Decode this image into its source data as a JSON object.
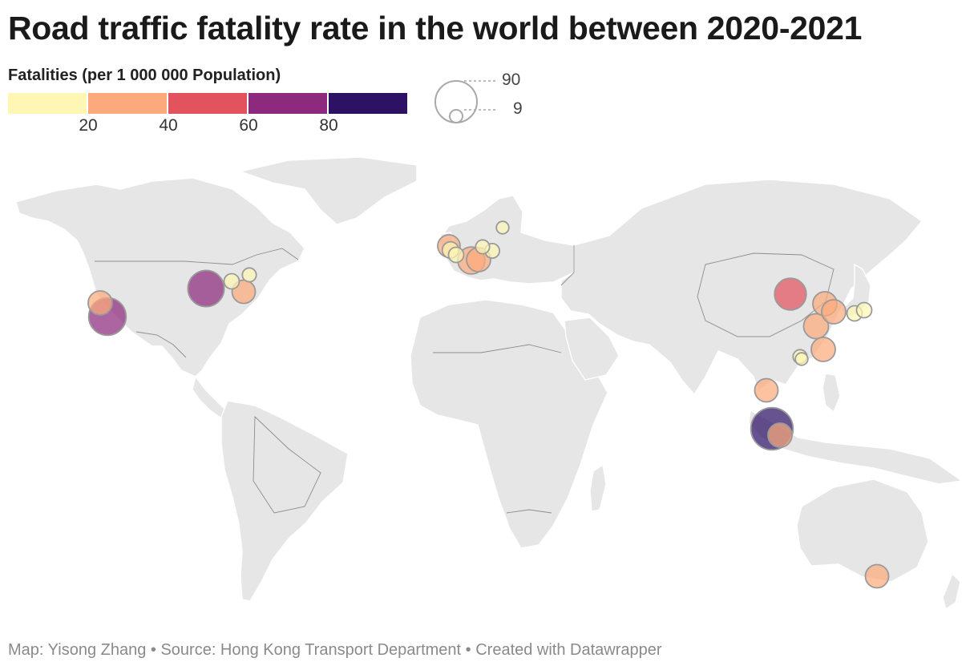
{
  "title": "Road traffic fatality rate in the world between 2020-2021",
  "legend": {
    "title": "Fatalities (per 1 000 000 Population)",
    "bins": [
      {
        "color": "#fdf6b4"
      },
      {
        "color": "#fcaa7c"
      },
      {
        "color": "#e2535e"
      },
      {
        "color": "#8e2a7d"
      },
      {
        "color": "#2d1165"
      }
    ],
    "ticks": [
      "20",
      "40",
      "60",
      "80"
    ],
    "size_labels": [
      "90",
      "9"
    ]
  },
  "map_data": {
    "type": "proportional-symbol-map",
    "scale_max": 90,
    "points": [
      {
        "place": "Seattle area",
        "value": 30
      },
      {
        "place": "Los Angeles area",
        "value": 72
      },
      {
        "place": "Chicago area",
        "value": 68
      },
      {
        "place": "Toronto area",
        "value": 12
      },
      {
        "place": "Boston area",
        "value": 10
      },
      {
        "place": "New York area",
        "value": 28
      },
      {
        "place": "London area",
        "value": 26
      },
      {
        "place": "Birmingham area",
        "value": 14
      },
      {
        "place": "Paris area",
        "value": 12
      },
      {
        "place": "Amsterdam area",
        "value": 10
      },
      {
        "place": "Berlin area",
        "value": 11
      },
      {
        "place": "Stockholm area",
        "value": 8
      },
      {
        "place": "Munich area",
        "value": 38
      },
      {
        "place": "Vienna area",
        "value": 30
      },
      {
        "place": "Beijing area",
        "value": 52
      },
      {
        "place": "Seoul area",
        "value": 30
      },
      {
        "place": "Busan area",
        "value": 30
      },
      {
        "place": "Osaka area",
        "value": 12
      },
      {
        "place": "Tokyo area",
        "value": 12
      },
      {
        "place": "Shanghai area",
        "value": 32
      },
      {
        "place": "Taipei area",
        "value": 30
      },
      {
        "place": "Hong Kong",
        "value": 10
      },
      {
        "place": "Macau",
        "value": 8
      },
      {
        "place": "Bangkok area",
        "value": 28
      },
      {
        "place": "Kuala Lumpur area",
        "value": 92
      },
      {
        "place": "Singapore",
        "value": 30
      },
      {
        "place": "Melbourne area",
        "value": 28
      }
    ]
  },
  "footer": "Map: Yisong Zhang • Source: Hong Kong Transport Department • Created with Datawrapper"
}
